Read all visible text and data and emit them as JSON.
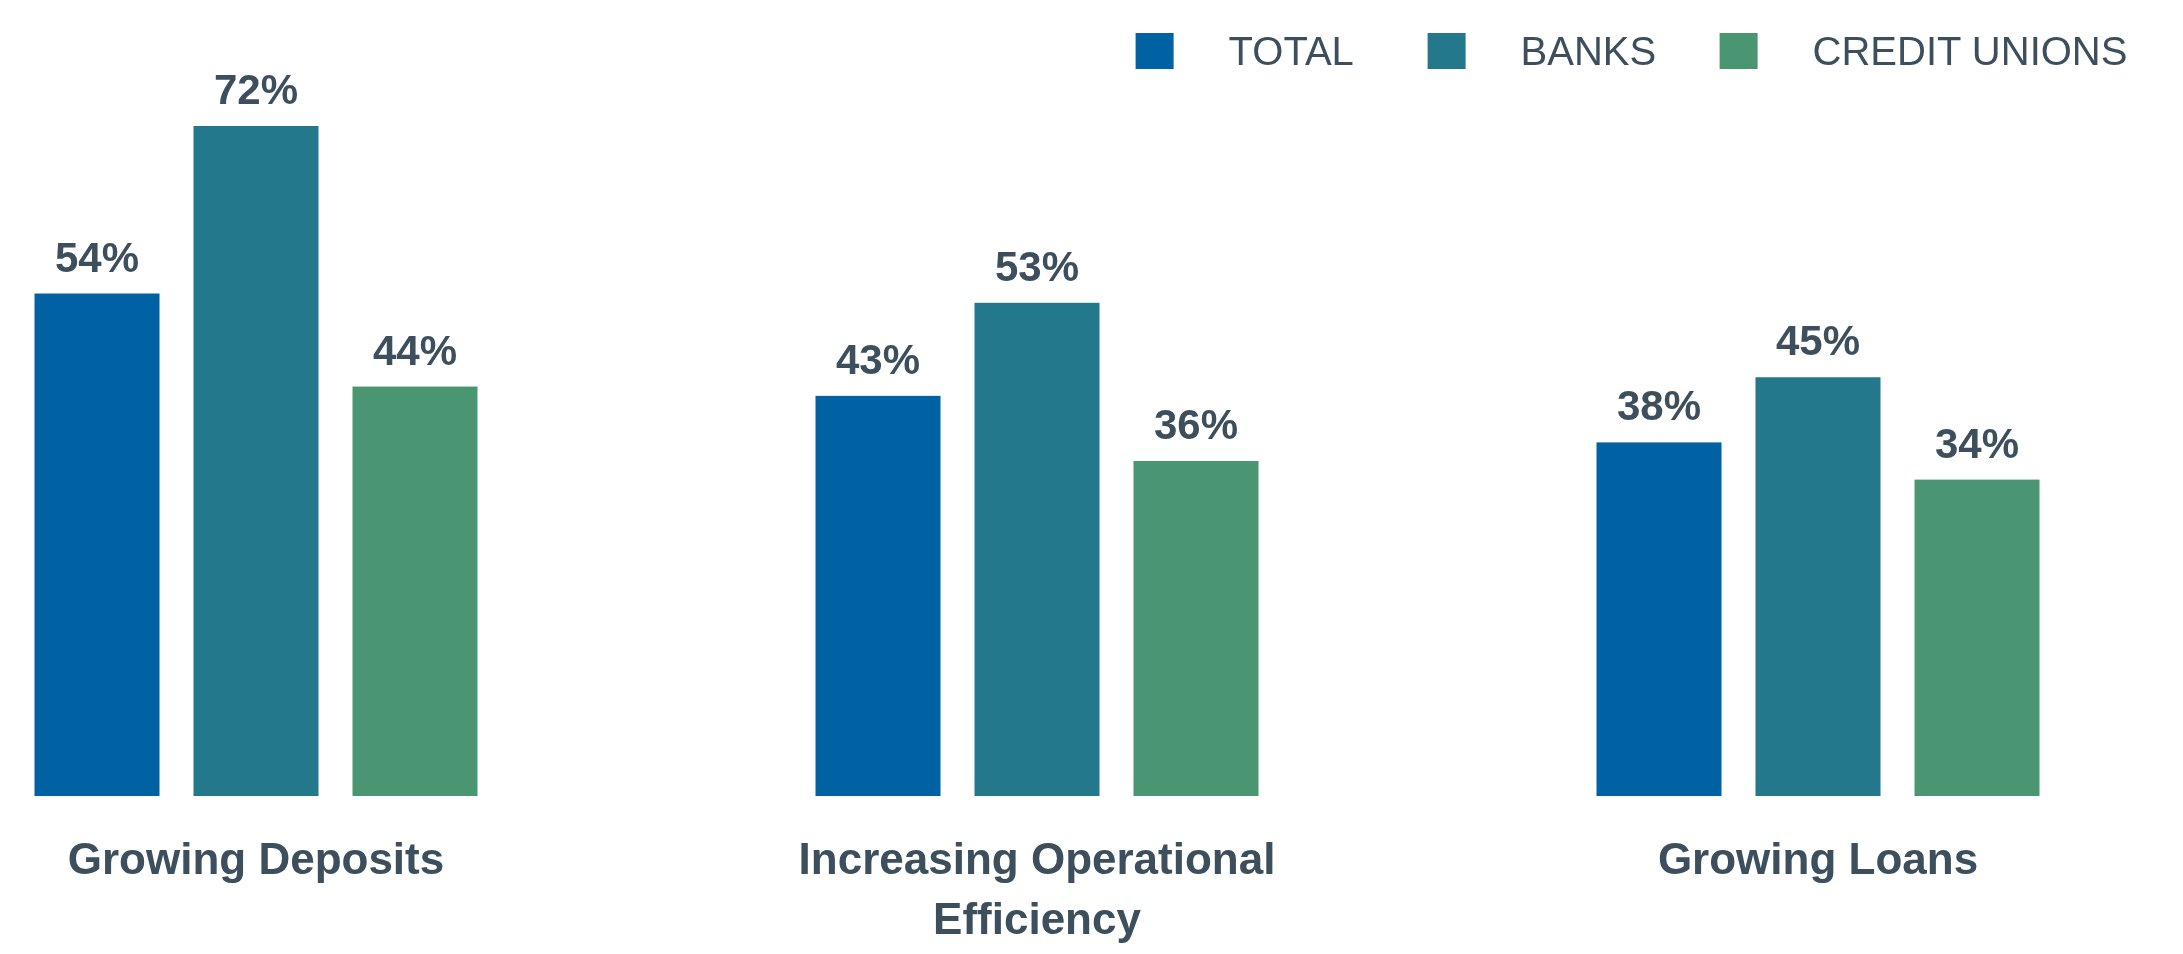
{
  "chart_data": {
    "type": "bar",
    "categories": [
      "Growing Deposits",
      "Increasing Operational Efficiency",
      "Growing Loans"
    ],
    "series": [
      {
        "name": "TOTAL",
        "color": "#0061a3",
        "values": [
          54,
          43,
          38
        ],
        "value_labels": [
          "54%",
          "43%",
          "38%"
        ]
      },
      {
        "name": "BANKS",
        "color": "#23798b",
        "values": [
          72,
          53,
          45
        ],
        "value_labels": [
          "72%",
          "53%",
          "45%"
        ]
      },
      {
        "name": "CREDIT UNIONS",
        "color": "#4a9672",
        "values": [
          44,
          36,
          34
        ],
        "value_labels": [
          "44%",
          "36%",
          "34%"
        ]
      }
    ],
    "legend": "top right",
    "tick_labels": "x"
  }
}
